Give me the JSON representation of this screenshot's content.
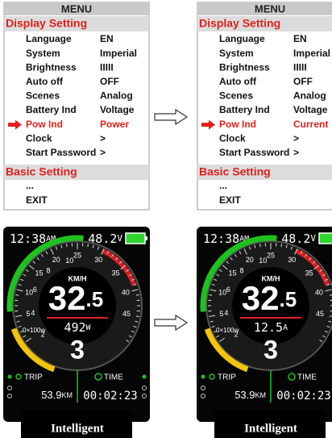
{
  "menus": [
    {
      "title": "MENU",
      "section": "Display Setting",
      "rows": [
        [
          "Language",
          "EN"
        ],
        [
          "System",
          "Imperial"
        ],
        [
          "Brightness",
          "IIIII"
        ],
        [
          "Auto off",
          "OFF"
        ],
        [
          "Scenes",
          "Analog"
        ],
        [
          "Battery Ind",
          "Voltage"
        ],
        [
          "Pow Ind",
          "Power"
        ],
        [
          "Clock",
          ">"
        ],
        [
          "Start Password",
          ">"
        ]
      ],
      "selected_row": 6,
      "section2": "Basic Setting",
      "more": "...",
      "exit": "EXIT"
    },
    {
      "title": "MENU",
      "section": "Display Setting",
      "rows": [
        [
          "Language",
          "EN"
        ],
        [
          "System",
          "Imperial"
        ],
        [
          "Brightness",
          "IIIII"
        ],
        [
          "Auto off",
          "OFF"
        ],
        [
          "Scenes",
          "Analog"
        ],
        [
          "Battery Ind",
          "Voltage"
        ],
        [
          "Pow Ind",
          "Current"
        ],
        [
          "Clock",
          ">"
        ],
        [
          "Start Password",
          ">"
        ]
      ],
      "selected_row": 6,
      "section2": "Basic Setting",
      "more": "...",
      "exit": "EXIT"
    }
  ],
  "dashboards": [
    {
      "time": "12:38",
      "ampm": "AM",
      "voltage": "48.2",
      "voltage_unit": "V",
      "speed_labels": [
        "5",
        "10",
        "15",
        "20",
        "25",
        "30",
        "35",
        "40",
        "45"
      ],
      "power_labels": [
        "2",
        "4",
        "6",
        "8",
        "10"
      ],
      "power_scale": "0×100w",
      "speed_unit": "KM/H",
      "speed": "32",
      "speed_decimal": ".5",
      "power": "492",
      "power_unit": "W",
      "gear": "3",
      "trip_label": "TRIP",
      "time_label": "TIME",
      "trip": "53.9",
      "trip_unit": "KM",
      "ride_time": "00:02:23",
      "mode": "Intelligent"
    },
    {
      "time": "12:38",
      "ampm": "AM",
      "voltage": "48.2",
      "voltage_unit": "V",
      "speed_labels": [
        "5",
        "10",
        "15",
        "20",
        "25",
        "30",
        "35",
        "40",
        "45"
      ],
      "power_labels": [
        "2",
        "4",
        "6",
        "8",
        "10"
      ],
      "power_scale": "0×100w",
      "speed_unit": "KM/H",
      "speed": "32",
      "speed_decimal": ".5",
      "power": "12.5",
      "power_unit": "A",
      "gear": "3",
      "trip_label": "TRIP",
      "time_label": "TIME",
      "trip": "53.9",
      "trip_unit": "KM",
      "ride_time": "00:02:23",
      "mode": "Intelligent"
    }
  ]
}
